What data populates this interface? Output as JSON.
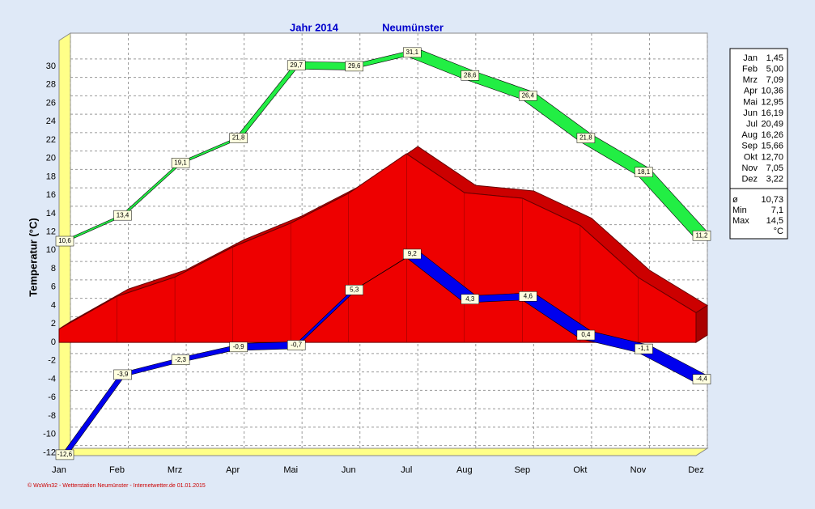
{
  "chart_data": {
    "type": "line",
    "title": "Jahr  2014",
    "subtitle": "Neumünster",
    "ylabel": "Temperatur  (°C)",
    "footer": "© WsWin32 - Wetterstation Neumünster - Internetwetter.de  01.01.2015",
    "categories": [
      "Jan",
      "Feb",
      "Mrz",
      "Apr",
      "Mai",
      "Jun",
      "Jul",
      "Aug",
      "Sep",
      "Okt",
      "Nov",
      "Dez"
    ],
    "ylim": [
      -12.3,
      32.8
    ],
    "yticks": [
      -12,
      -10,
      -8,
      -6,
      -4,
      -2,
      0,
      2,
      4,
      6,
      8,
      10,
      12,
      14,
      16,
      18,
      20,
      22,
      24,
      26,
      28,
      30
    ],
    "grid": true,
    "series": [
      {
        "style": "ribbon",
        "color": "#22ee44",
        "values": [
          10.6,
          13.4,
          19.1,
          21.8,
          29.7,
          29.6,
          31.1,
          28.6,
          26.4,
          21.8,
          18.1,
          11.2
        ],
        "value_labels": [
          "10,6",
          "13,4",
          "19,1",
          "21,8",
          "29,7",
          "29,6",
          "31,1",
          "28,6",
          "26,4",
          "21,8",
          "18,1",
          "11,2"
        ]
      },
      {
        "style": "area",
        "color": "#ee0000",
        "values": [
          1.45,
          5.0,
          7.09,
          10.36,
          12.95,
          16.19,
          20.49,
          16.26,
          15.66,
          12.7,
          7.05,
          3.22
        ],
        "value_labels": [
          "1,45",
          "5,00",
          "7,09",
          "10,36",
          "12,95",
          "16,19",
          "20,49",
          "16,26",
          "15,66",
          "12,70",
          "7,05",
          "3,22"
        ]
      },
      {
        "style": "ribbon",
        "color": "#0000ee",
        "values": [
          -12.6,
          -3.9,
          -2.3,
          -0.9,
          -0.7,
          5.3,
          9.2,
          4.3,
          4.6,
          0.4,
          -1.1,
          -4.4
        ],
        "value_labels": [
          "-12,6",
          "-3,9",
          "-2,3",
          "-0,9",
          "-0,7",
          "5,3",
          "9,2",
          "4,3",
          "4,6",
          "0,4",
          "-1,1",
          "-4,4"
        ]
      }
    ],
    "summary": [
      {
        "label": "ø",
        "value": "10,73"
      },
      {
        "label": "Min",
        "value": "7,1"
      },
      {
        "label": "Max",
        "value": "14,5"
      }
    ],
    "unit": "°C"
  }
}
